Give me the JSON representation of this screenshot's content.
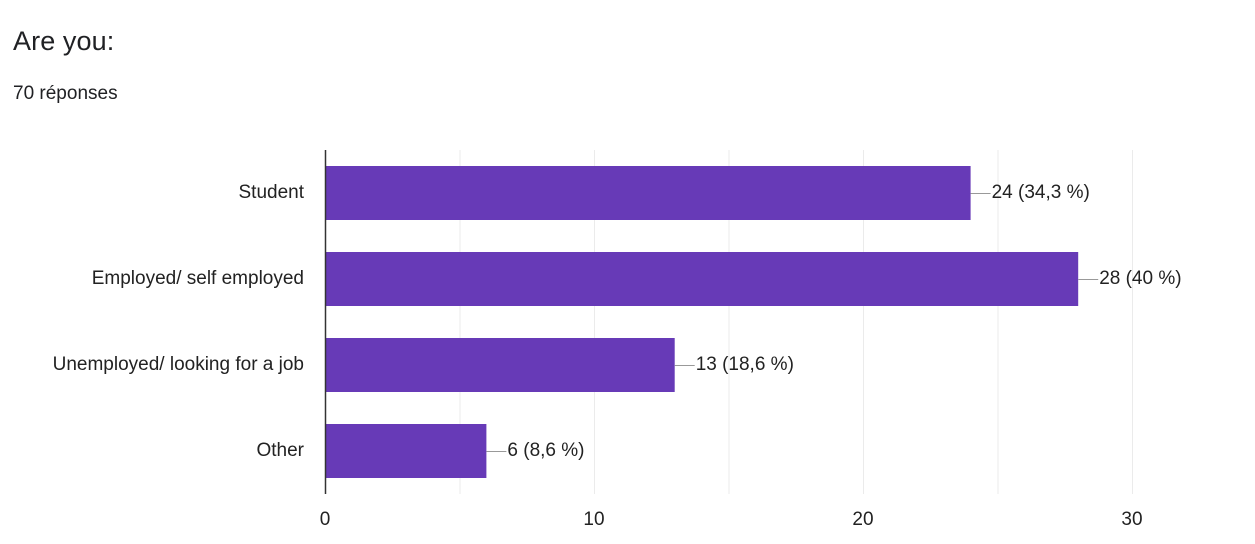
{
  "question": {
    "title": "Are you:",
    "responses": "70 réponses"
  },
  "colors": {
    "bar": "#673ab7",
    "grid": "#ebebeb",
    "axis": "#333333",
    "text": "#222222",
    "connector": "#999999"
  },
  "chart_data": {
    "type": "bar",
    "orientation": "horizontal",
    "categories": [
      "Student",
      "Employed/ self employed",
      "Unemployed/ looking for a job",
      "Other"
    ],
    "values": [
      24,
      28,
      13,
      6
    ],
    "data_labels": [
      "24 (34,3 %)",
      "28 (40 %)",
      "13 (18,6 %)",
      "6 (8,6 %)"
    ],
    "xlim": [
      0,
      30
    ],
    "x_ticks": [
      0,
      10,
      20,
      30
    ],
    "x_tick_labels": [
      "0",
      "10",
      "20",
      "30"
    ],
    "grid": true
  }
}
